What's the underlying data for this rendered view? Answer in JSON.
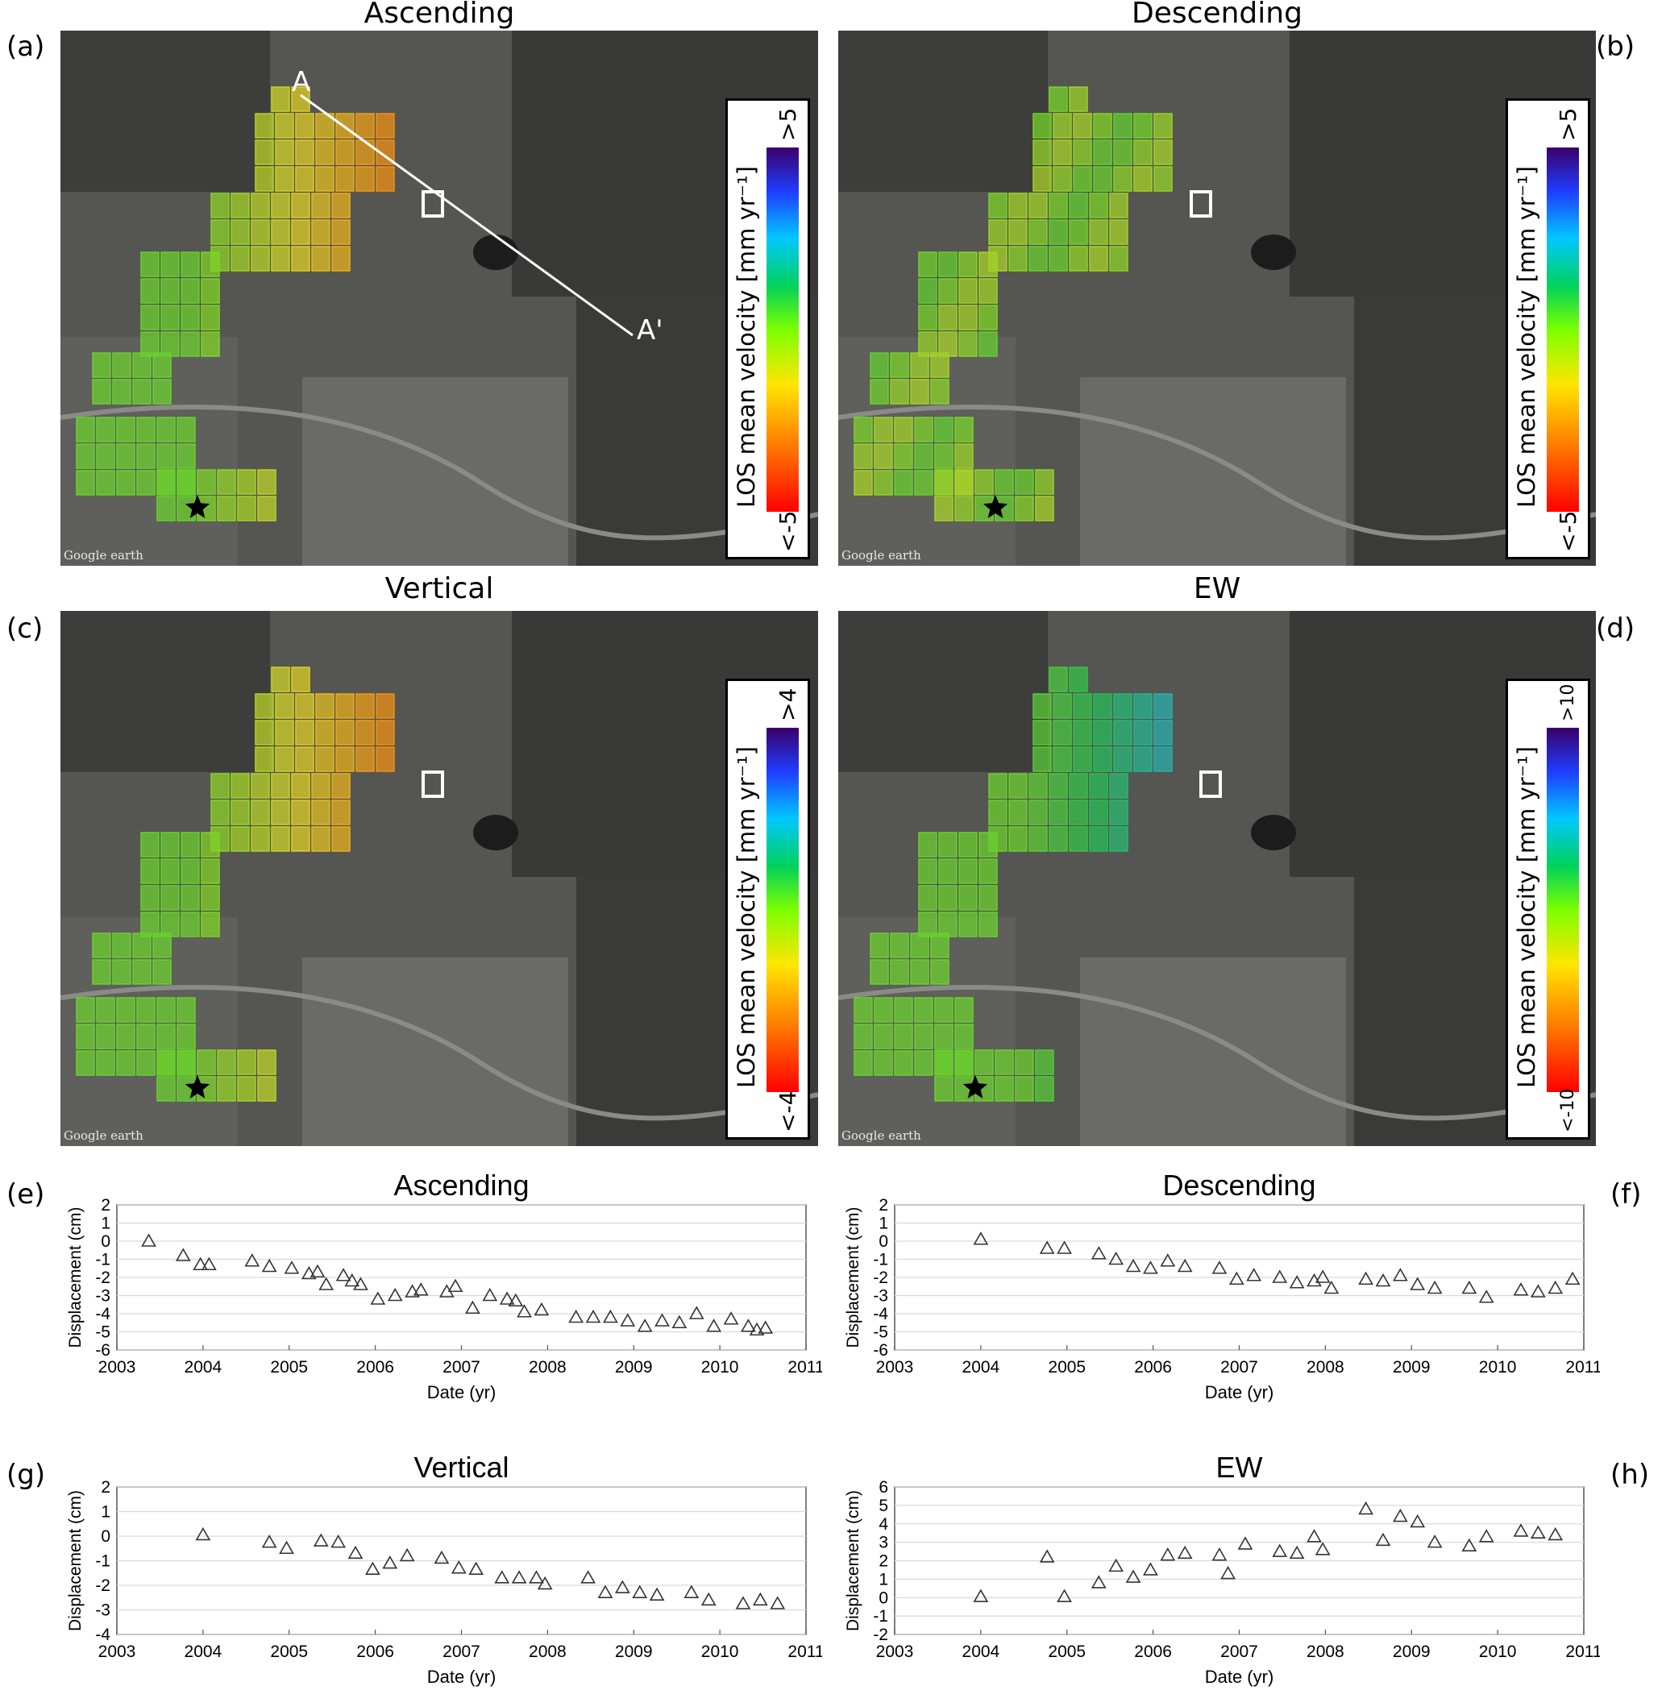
{
  "panels": {
    "a": {
      "letter": "(a)",
      "title": "Ascending",
      "line_start": "A",
      "line_end": "A'"
    },
    "b": {
      "letter": "(b)",
      "title": "Descending"
    },
    "c": {
      "letter": "(c)",
      "title": "Vertical"
    },
    "d": {
      "letter": "(d)",
      "title": "EW"
    },
    "e": {
      "letter": "(e)"
    },
    "f": {
      "letter": "(f)"
    },
    "g": {
      "letter": "(g)"
    },
    "h": {
      "letter": "(h)"
    }
  },
  "map_watermark": "Google earth",
  "colorbars": [
    {
      "title": "LOS mean velocity [mm yr⁻¹]",
      "min": "<-5",
      "max": ">5"
    },
    {
      "title": "LOS mean velocity [mm yr⁻¹]",
      "min": "<-5",
      "max": ">5"
    },
    {
      "title": "LOS mean velocity [mm yr⁻¹]",
      "min": "<-4",
      "max": ">4"
    },
    {
      "title": "LOS mean velocity [mm yr⁻¹]",
      "min": "<-10",
      "max": ">10"
    }
  ],
  "chart_data": [
    {
      "type": "scatter",
      "title": "Ascending",
      "xlabel": "Date (yr)",
      "ylabel": "Displacement (cm)",
      "xlim": [
        2003,
        2011
      ],
      "ylim": [
        -6,
        2
      ],
      "xticks": [
        2003,
        2004,
        2005,
        2006,
        2007,
        2008,
        2009,
        2010,
        2011
      ],
      "yticks": [
        -6,
        -5,
        -4,
        -3,
        -2,
        -1,
        0,
        1,
        2
      ],
      "grid": "horizontal",
      "marker": "triangle",
      "x": [
        2003.37,
        2003.77,
        2003.97,
        2004.07,
        2004.57,
        2004.77,
        2005.03,
        2005.23,
        2005.33,
        2005.43,
        2005.63,
        2005.73,
        2005.83,
        2006.03,
        2006.23,
        2006.43,
        2006.53,
        2006.83,
        2006.93,
        2007.13,
        2007.33,
        2007.53,
        2007.63,
        2007.73,
        2007.93,
        2008.33,
        2008.53,
        2008.73,
        2008.93,
        2009.13,
        2009.33,
        2009.53,
        2009.73,
        2009.93,
        2010.13,
        2010.33,
        2010.43,
        2010.53
      ],
      "y": [
        0.0,
        -0.8,
        -1.3,
        -1.3,
        -1.1,
        -1.4,
        -1.5,
        -1.8,
        -1.7,
        -2.4,
        -1.9,
        -2.2,
        -2.4,
        -3.2,
        -3.0,
        -2.8,
        -2.7,
        -2.8,
        -2.5,
        -3.7,
        -3.0,
        -3.2,
        -3.3,
        -3.9,
        -3.8,
        -4.2,
        -4.2,
        -4.2,
        -4.4,
        -4.7,
        -4.4,
        -4.5,
        -4.0,
        -4.7,
        -4.3,
        -4.7,
        -4.9,
        -4.8
      ]
    },
    {
      "type": "scatter",
      "title": "Descending",
      "xlabel": "Date (yr)",
      "ylabel": "Displacement (cm)",
      "xlim": [
        2003,
        2011
      ],
      "ylim": [
        -6,
        2
      ],
      "xticks": [
        2003,
        2004,
        2005,
        2006,
        2007,
        2008,
        2009,
        2010,
        2011
      ],
      "yticks": [
        -6,
        -5,
        -4,
        -3,
        -2,
        -1,
        0,
        1,
        2
      ],
      "grid": "horizontal",
      "marker": "triangle",
      "x": [
        2004.0,
        2004.77,
        2004.97,
        2005.37,
        2005.57,
        2005.77,
        2005.97,
        2006.17,
        2006.37,
        2006.77,
        2006.97,
        2007.17,
        2007.47,
        2007.67,
        2007.87,
        2007.97,
        2008.07,
        2008.47,
        2008.67,
        2008.87,
        2009.07,
        2009.27,
        2009.67,
        2009.87,
        2010.27,
        2010.47,
        2010.67,
        2010.87
      ],
      "y": [
        0.1,
        -0.4,
        -0.4,
        -0.7,
        -1.0,
        -1.4,
        -1.5,
        -1.1,
        -1.4,
        -1.5,
        -2.1,
        -1.9,
        -2.0,
        -2.3,
        -2.2,
        -2.0,
        -2.6,
        -2.1,
        -2.2,
        -1.9,
        -2.4,
        -2.6,
        -2.6,
        -3.1,
        -2.7,
        -2.8,
        -2.6,
        -2.1
      ]
    },
    {
      "type": "scatter",
      "title": "Vertical",
      "xlabel": "Date (yr)",
      "ylabel": "Displacement (cm)",
      "xlim": [
        2003,
        2011
      ],
      "ylim": [
        -4,
        2
      ],
      "xticks": [
        2003,
        2004,
        2005,
        2006,
        2007,
        2008,
        2009,
        2010,
        2011
      ],
      "yticks": [
        -4,
        -3,
        -2,
        -1,
        0,
        1,
        2
      ],
      "grid": "horizontal",
      "marker": "triangle",
      "x": [
        2004.0,
        2004.77,
        2004.97,
        2005.37,
        2005.57,
        2005.77,
        2005.97,
        2006.17,
        2006.37,
        2006.77,
        2006.97,
        2007.17,
        2007.47,
        2007.67,
        2007.87,
        2007.97,
        2008.47,
        2008.67,
        2008.87,
        2009.07,
        2009.27,
        2009.67,
        2009.87,
        2010.27,
        2010.47,
        2010.67
      ],
      "y": [
        0.05,
        -0.25,
        -0.5,
        -0.2,
        -0.25,
        -0.7,
        -1.35,
        -1.1,
        -0.8,
        -0.9,
        -1.3,
        -1.35,
        -1.7,
        -1.7,
        -1.7,
        -1.95,
        -1.7,
        -2.3,
        -2.1,
        -2.3,
        -2.4,
        -2.3,
        -2.6,
        -2.75,
        -2.6,
        -2.75
      ]
    },
    {
      "type": "scatter",
      "title": "EW",
      "xlabel": "Date (yr)",
      "ylabel": "Displacement (cm)",
      "xlim": [
        2003,
        2011
      ],
      "ylim": [
        -2,
        6
      ],
      "xticks": [
        2003,
        2004,
        2005,
        2006,
        2007,
        2008,
        2009,
        2010,
        2011
      ],
      "yticks": [
        -2,
        -1,
        0,
        1,
        2,
        3,
        4,
        5,
        6
      ],
      "grid": "horizontal",
      "marker": "triangle",
      "x": [
        2004.0,
        2004.77,
        2004.97,
        2005.37,
        2005.57,
        2005.77,
        2005.97,
        2006.17,
        2006.37,
        2006.77,
        2006.87,
        2007.07,
        2007.47,
        2007.67,
        2007.87,
        2007.97,
        2008.47,
        2008.67,
        2008.87,
        2009.07,
        2009.27,
        2009.67,
        2009.87,
        2010.27,
        2010.47,
        2010.67
      ],
      "y": [
        0.05,
        2.2,
        0.05,
        0.8,
        1.7,
        1.1,
        1.5,
        2.3,
        2.4,
        2.3,
        1.3,
        2.9,
        2.5,
        2.4,
        3.3,
        2.6,
        4.8,
        3.1,
        4.4,
        4.1,
        3.0,
        2.8,
        3.3,
        3.6,
        3.5,
        3.4
      ]
    }
  ]
}
